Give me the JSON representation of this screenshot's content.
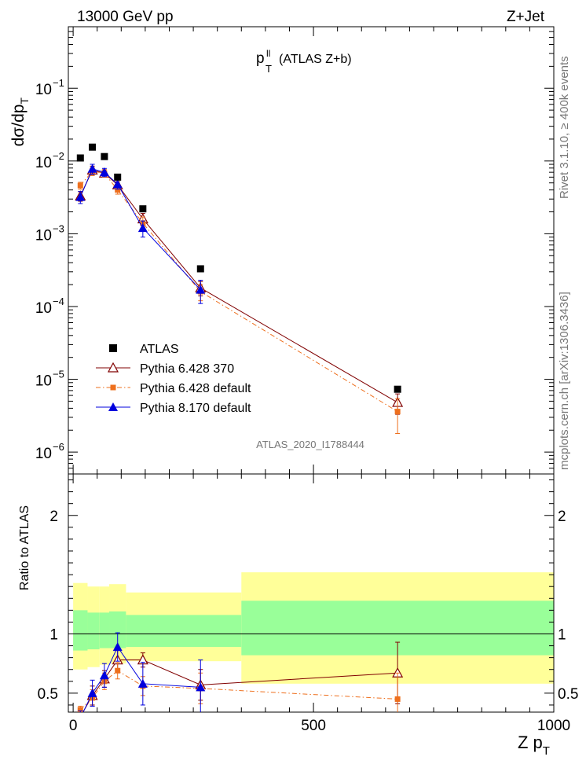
{
  "header": {
    "left": "13000 GeV pp",
    "right": "Z+Jet"
  },
  "side_labels": {
    "rivet": "Rivet 3.1.10, ≥ 400k events",
    "mcplots": "mcplots.cern.ch [arXiv:1306.3436]"
  },
  "watermark": "ATLAS_2020_I1788444",
  "chart_data": [
    {
      "panel": "main",
      "type": "scatter",
      "title": "p_T^ll (ATLAS Z+b)",
      "title_parts": {
        "base": "p",
        "sup": "ll",
        "sub": "T",
        "rest": " (ATLAS Z+b)"
      },
      "ylabel": "dσ/dp_T",
      "ylabel_parts": {
        "base": "dσ/dp",
        "sub": "T"
      },
      "yscale": "log",
      "ylim": [
        5e-07,
        0.7
      ],
      "xlim": [
        -10,
        1000
      ],
      "y_tick_labels": [
        {
          "value": 1e-06,
          "base": "10",
          "exp": "−6"
        },
        {
          "value": 1e-05,
          "base": "10",
          "exp": "−5"
        },
        {
          "value": 0.0001,
          "base": "10",
          "exp": "−4"
        },
        {
          "value": 0.001,
          "base": "10",
          "exp": "−3"
        },
        {
          "value": 0.01,
          "base": "10",
          "exp": "−2"
        },
        {
          "value": 0.1,
          "base": "10",
          "exp": "−1"
        }
      ],
      "legend_position": "bottom-left",
      "series": [
        {
          "name": "ATLAS",
          "style": "data",
          "color": "#000000",
          "x": [
            15,
            40,
            65,
            92.5,
            145,
            265,
            675
          ],
          "y": [
            0.011,
            0.0155,
            0.0115,
            0.006,
            0.0022,
            0.00033,
            7.3e-06
          ]
        },
        {
          "name": "Pythia 6.428 370",
          "style": "mc",
          "color": "#800000",
          "marker": "open-triangle",
          "line": "solid",
          "x": [
            15,
            40,
            65,
            92.5,
            145,
            265,
            675
          ],
          "y": [
            0.0033,
            0.0075,
            0.0068,
            0.0047,
            0.0016,
            0.00018,
            4.8e-06
          ],
          "err": [
            0.0005,
            0.001,
            0.0008,
            0.0005,
            0.0003,
            4e-05,
            1.5e-06
          ]
        },
        {
          "name": "Pythia 6.428 default",
          "style": "mc",
          "color": "#ee6f1d",
          "marker": "square",
          "line": "dashdot",
          "x": [
            15,
            40,
            65,
            92.5,
            145,
            265,
            675
          ],
          "y": [
            0.0046,
            0.0072,
            0.0068,
            0.004,
            0.0014,
            0.00016,
            3.6e-06
          ],
          "err": [
            0.0005,
            0.0009,
            0.0008,
            0.0005,
            0.0003,
            4e-05,
            1.8e-06
          ]
        },
        {
          "name": "Pythia 8.170 default",
          "style": "mc",
          "color": "#0000dd",
          "marker": "filled-triangle",
          "line": "solid",
          "x": [
            15,
            40,
            65,
            92.5,
            145,
            265
          ],
          "y": [
            0.0032,
            0.0078,
            0.007,
            0.0048,
            0.0012,
            0.00017
          ],
          "err": [
            0.0006,
            0.0012,
            0.0009,
            0.0007,
            0.0003,
            6e-05
          ]
        }
      ]
    },
    {
      "panel": "ratio",
      "type": "scatter",
      "ylabel": "Ratio to ATLAS",
      "xlabel": "Z p_T",
      "xlabel_parts": {
        "base": "Z p",
        "sub": "T"
      },
      "xlim": [
        -10,
        1000
      ],
      "ylim": [
        0.34,
        2.35
      ],
      "x_tick_labels": [
        0,
        500,
        1000
      ],
      "y_tick_labels": [
        0.5,
        1,
        2
      ],
      "bands": [
        {
          "x0": 0,
          "x1": 30,
          "yellow": [
            0.7,
            1.43
          ],
          "green": [
            0.86,
            1.2
          ]
        },
        {
          "x0": 30,
          "x1": 55,
          "yellow": [
            0.72,
            1.4
          ],
          "green": [
            0.87,
            1.18
          ]
        },
        {
          "x0": 55,
          "x1": 75,
          "yellow": [
            0.74,
            1.4
          ],
          "green": [
            0.88,
            1.18
          ]
        },
        {
          "x0": 75,
          "x1": 110,
          "yellow": [
            0.75,
            1.42
          ],
          "green": [
            0.88,
            1.19
          ]
        },
        {
          "x0": 110,
          "x1": 350,
          "yellow": [
            0.77,
            1.35
          ],
          "green": [
            0.89,
            1.16
          ]
        },
        {
          "x0": 350,
          "x1": 1000,
          "yellow": [
            0.58,
            1.52
          ],
          "green": [
            0.82,
            1.28
          ]
        }
      ],
      "series": [
        {
          "name": "Pythia 6.428 370",
          "color": "#800000",
          "marker": "open-triangle",
          "line": "solid",
          "x": [
            15,
            40,
            65,
            92.5,
            145,
            265,
            675
          ],
          "y": [
            0.3,
            0.48,
            0.62,
            0.78,
            0.78,
            0.57,
            0.67
          ],
          "err": [
            0.04,
            0.08,
            0.07,
            0.08,
            0.06,
            0.13,
            0.26
          ]
        },
        {
          "name": "Pythia 6.428 default",
          "color": "#ee6f1d",
          "marker": "square",
          "line": "dashdot",
          "x": [
            15,
            40,
            65,
            92.5,
            145,
            265,
            675
          ],
          "y": [
            0.36,
            0.46,
            0.6,
            0.69,
            0.56,
            0.54,
            0.45
          ],
          "err": [
            0.03,
            0.07,
            0.07,
            0.07,
            0.08,
            0.13,
            0.22
          ]
        },
        {
          "name": "Pythia 8.170 default",
          "color": "#0000dd",
          "marker": "filled-triangle",
          "line": "solid",
          "x": [
            15,
            40,
            65,
            92.5,
            145,
            265
          ],
          "y": [
            0.29,
            0.5,
            0.65,
            0.89,
            0.58,
            0.55
          ],
          "err": [
            0.06,
            0.11,
            0.1,
            0.12,
            0.18,
            0.23
          ]
        }
      ]
    }
  ]
}
